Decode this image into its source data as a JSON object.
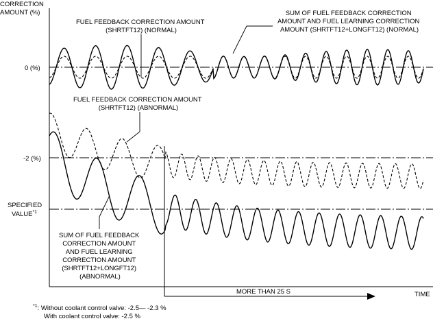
{
  "axis": {
    "y_title_line1": "CORRECTION",
    "y_title_line2": "AMOUNT (%)",
    "x_title": "TIME",
    "zero_label": "0 (%)",
    "minus2_label": "-2 (%)",
    "specified_line1": "SPECIFIED",
    "specified_line2": "VALUE",
    "specified_mark": "*1"
  },
  "labels": {
    "shrtft_normal": [
      "FUEL FEEDBACK CORRECTION AMOUNT",
      "(SHRTFT12) (NORMAL)"
    ],
    "sum_normal": [
      "SUM OF FUEL FEEDBACK CORRECTION",
      "AMOUNT AND FUEL LEARNING CORRECTION",
      "AMOUNT (SHRTFT12+LONGFT12) (NORMAL)"
    ],
    "shrtft_abnormal": [
      "FUEL FEEDBACK CORRECTION AMOUNT",
      "(SHRTFT12) (ABNORMAL)"
    ],
    "sum_abnormal": [
      "SUM OF FUEL FEEDBACK",
      "CORRECTION AMOUNT",
      "AND FUEL LEARNING",
      "CORRECTION AMOUNT",
      "(SHRTFT12+LONGFT12)",
      "(ABNORMAL)"
    ],
    "duration": "MORE THAN 25 S"
  },
  "footnote": {
    "mark": "*1",
    "line1": ": Without coolant control valve: -2.5— -2.3 %",
    "line2": "With coolant control valve: -2.5 %"
  }
}
